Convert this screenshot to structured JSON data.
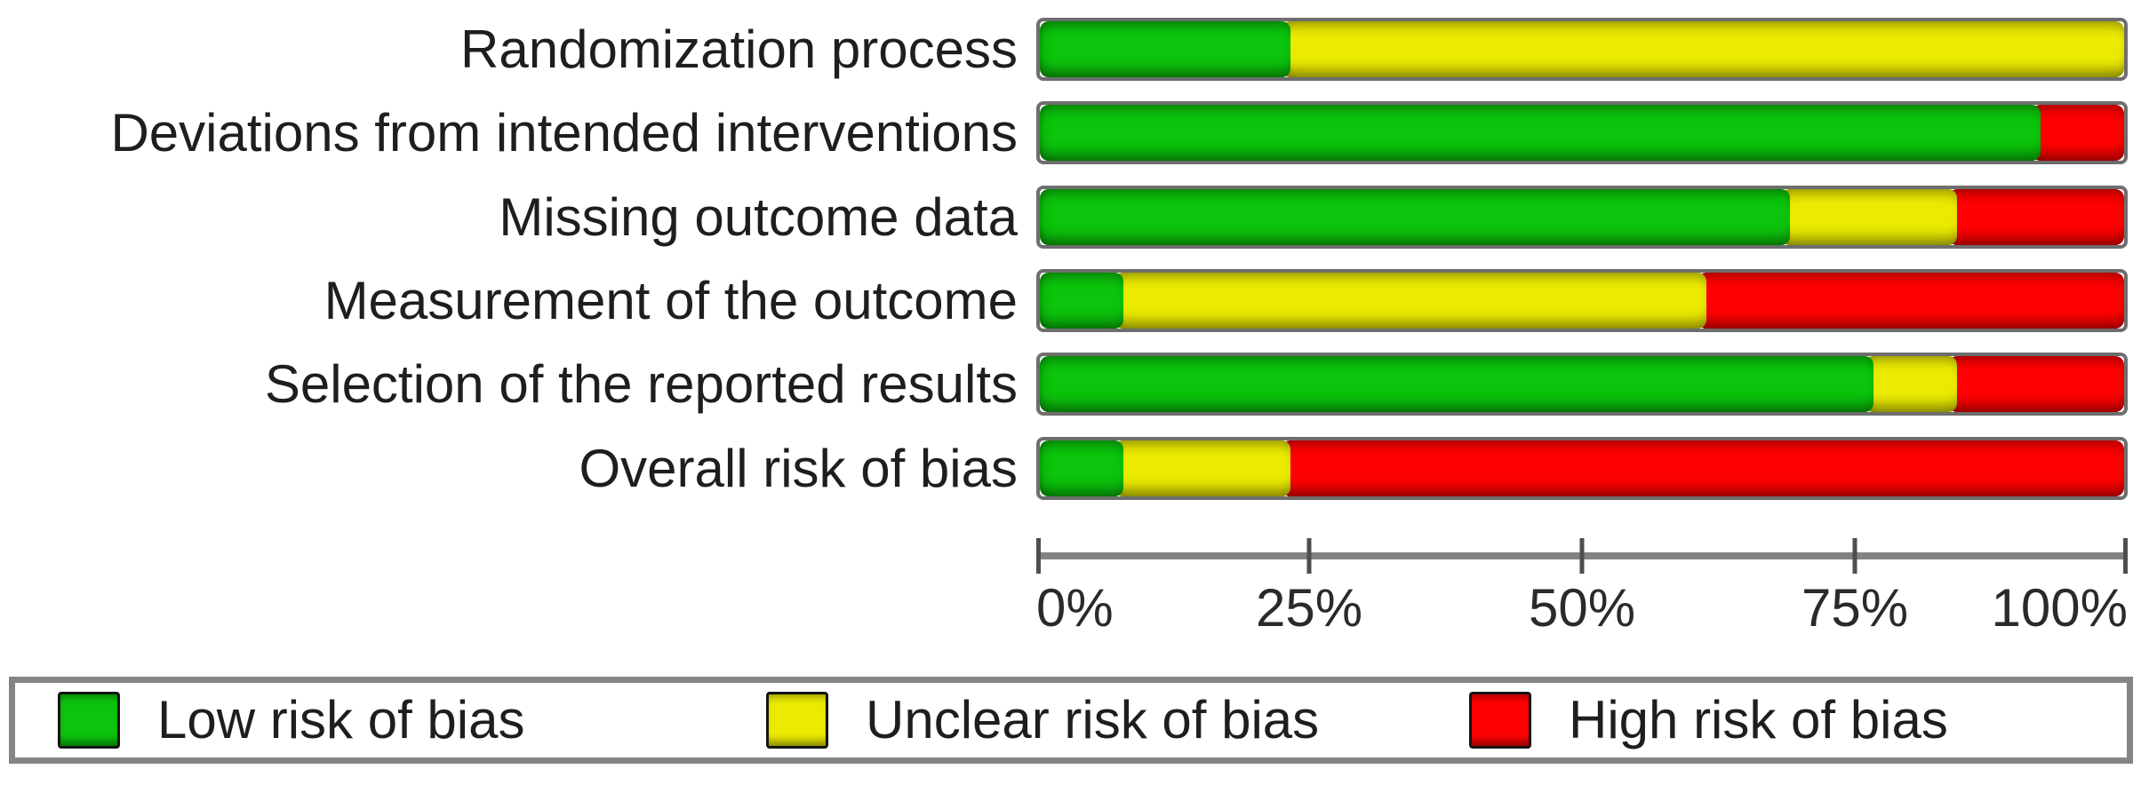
{
  "colors": {
    "low": "#0BC40B",
    "unclear": "#EBEB00",
    "high": "#FF0000",
    "axis_line": "#828282",
    "tick": "#4E4E4E",
    "bar_border": "#6E6E6E",
    "legend_border": "#858585",
    "text": "#1E1E1E"
  },
  "chart_data": {
    "type": "bar",
    "orientation": "horizontal",
    "stacked": true,
    "title": "",
    "xlabel": "",
    "ylabel": "",
    "xlim": [
      0,
      100
    ],
    "unit": "percent",
    "grid": false,
    "legend_position": "bottom",
    "categories": [
      "Randomization process",
      "Deviations from intended interventions",
      "Missing outcome data",
      "Measurement of the outcome",
      "Selection of the reported results",
      "Overall risk of bias"
    ],
    "series": [
      {
        "name": "Low risk of bias",
        "color_key": "low",
        "values": [
          23.1,
          92.3,
          69.2,
          7.7,
          76.9,
          7.7
        ]
      },
      {
        "name": "Unclear risk of bias",
        "color_key": "unclear",
        "values": [
          76.9,
          0.0,
          15.4,
          53.8,
          7.7,
          15.4
        ]
      },
      {
        "name": "High risk of bias",
        "color_key": "high",
        "values": [
          0.0,
          7.7,
          15.4,
          38.5,
          15.4,
          76.9
        ]
      }
    ],
    "x_ticks": [
      {
        "label": "0%",
        "value": 0
      },
      {
        "label": "25%",
        "value": 25
      },
      {
        "label": "50%",
        "value": 50
      },
      {
        "label": "75%",
        "value": 75
      },
      {
        "label": "100%",
        "value": 100
      }
    ]
  },
  "legend": {
    "items": [
      {
        "label": "Low risk of bias"
      },
      {
        "label": "Unclear risk of bias"
      },
      {
        "label": "High risk of bias"
      }
    ]
  }
}
